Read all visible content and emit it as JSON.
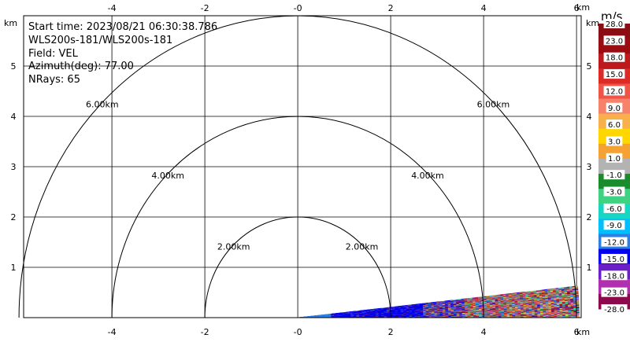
{
  "info": {
    "start_time": "Start time: 2023/08/21 06:30:38.786",
    "instrument": "WLS200s-181/WLS200s-181",
    "field": "Field: VEL",
    "azimuth": "Azimuth(deg): 77.00",
    "nrays": "NRays: 65"
  },
  "chart_data": {
    "type": "heatmap",
    "subtype": "rhi-radial-velocity",
    "x_range_km": [
      -5.9,
      6.1
    ],
    "y_range_km": [
      0,
      6
    ],
    "x_ticks": [
      "-4",
      "-2",
      "-0",
      "2",
      "4",
      "6"
    ],
    "y_ticks": [
      "1",
      "2",
      "3",
      "4",
      "5"
    ],
    "x_unit_label": "km",
    "y_unit_label": "km",
    "grid": true,
    "range_rings_km": [
      2,
      4,
      6
    ],
    "range_ring_labels": [
      "2.00km",
      "4.00km",
      "6.00km"
    ],
    "rays": {
      "count": 65,
      "elevation_deg": [
        0,
        6
      ],
      "max_range_km": 6.0,
      "near_range_dominant_ms": -12,
      "far_range": "mixed noise"
    },
    "colorbar": {
      "unit": "m/s",
      "ticks": [
        "28.0",
        "23.0",
        "18.0",
        "15.0",
        "12.0",
        "9.0",
        "6.0",
        "3.0",
        "1.0",
        "-1.0",
        "-3.0",
        "-6.0",
        "-9.0",
        "-12.0",
        "-15.0",
        "-18.0",
        "-23.0",
        "-28.0"
      ],
      "colors": [
        "#8a0d14",
        "#9c0a12",
        "#bc1a1d",
        "#dc2a27",
        "#ef5449",
        "#f7826c",
        "#f8b14a",
        "#ffd700",
        "#f4a235",
        "#b3b3b3",
        "#1a8c2e",
        "#3fd282",
        "#18d6c4",
        "#00bfff",
        "#2f7fe0",
        "#0000ee",
        "#6a1fc9",
        "#b030b0",
        "#8c0a4b"
      ]
    }
  }
}
